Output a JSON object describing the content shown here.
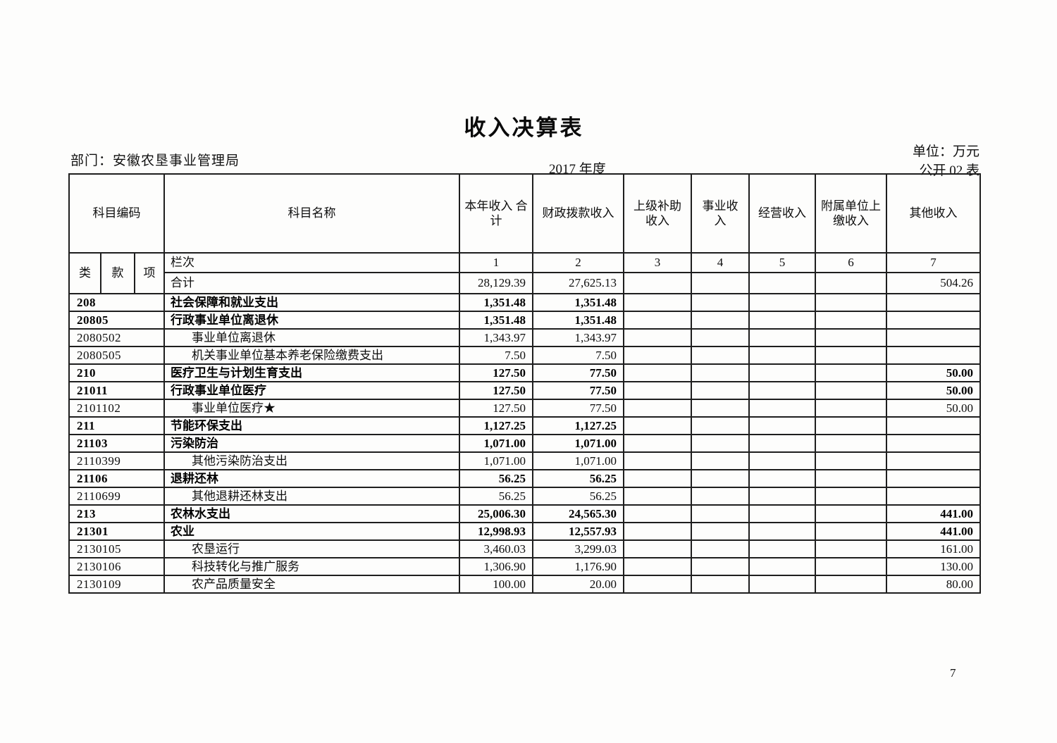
{
  "page": {
    "title": "收入决算表",
    "department": "部门：安徽农垦事业管理局",
    "year": "2017 年度",
    "unit": "单位：万元",
    "table_code": "公开 02 表",
    "page_number": "7"
  },
  "table": {
    "headers": {
      "subject_code": "科目编码",
      "subject_name": "科目名称",
      "income_columns": [
        "本年收入\n合计",
        "财政拨款收入",
        "上级补助\n收入",
        "事业收\n入",
        "经营收入",
        "附属单位上\n缴收入",
        "其他收入"
      ],
      "code_sub": [
        "类",
        "款",
        "项"
      ],
      "lanci": "栏次",
      "column_numbers": [
        "1",
        "2",
        "3",
        "4",
        "5",
        "6",
        "7"
      ]
    },
    "total_row": {
      "name": "合计",
      "values": [
        "28,129.39",
        "27,625.13",
        "",
        "",
        "",
        "",
        "504.26"
      ]
    },
    "rows": [
      {
        "code": "208",
        "name": "社会保障和就业支出",
        "bold": true,
        "indent": false,
        "values": [
          "1,351.48",
          "1,351.48",
          "",
          "",
          "",
          "",
          ""
        ]
      },
      {
        "code": "20805",
        "name": "行政事业单位离退休",
        "bold": true,
        "indent": false,
        "values": [
          "1,351.48",
          "1,351.48",
          "",
          "",
          "",
          "",
          ""
        ]
      },
      {
        "code": "2080502",
        "name": "事业单位离退休",
        "bold": false,
        "indent": true,
        "values": [
          "1,343.97",
          "1,343.97",
          "",
          "",
          "",
          "",
          ""
        ]
      },
      {
        "code": "2080505",
        "name": "机关事业单位基本养老保险缴费支出",
        "bold": false,
        "indent": true,
        "values": [
          "7.50",
          "7.50",
          "",
          "",
          "",
          "",
          ""
        ]
      },
      {
        "code": "210",
        "name": "医疗卫生与计划生育支出",
        "bold": true,
        "indent": false,
        "values": [
          "127.50",
          "77.50",
          "",
          "",
          "",
          "",
          "50.00"
        ]
      },
      {
        "code": "21011",
        "name": "行政事业单位医疗",
        "bold": true,
        "indent": false,
        "values": [
          "127.50",
          "77.50",
          "",
          "",
          "",
          "",
          "50.00"
        ]
      },
      {
        "code": "2101102",
        "name": "事业单位医疗★",
        "bold": false,
        "indent": true,
        "values": [
          "127.50",
          "77.50",
          "",
          "",
          "",
          "",
          "50.00"
        ]
      },
      {
        "code": "211",
        "name": "节能环保支出",
        "bold": true,
        "indent": false,
        "values": [
          "1,127.25",
          "1,127.25",
          "",
          "",
          "",
          "",
          ""
        ]
      },
      {
        "code": "21103",
        "name": "污染防治",
        "bold": true,
        "indent": false,
        "values": [
          "1,071.00",
          "1,071.00",
          "",
          "",
          "",
          "",
          ""
        ]
      },
      {
        "code": "2110399",
        "name": "其他污染防治支出",
        "bold": false,
        "indent": true,
        "values": [
          "1,071.00",
          "1,071.00",
          "",
          "",
          "",
          "",
          ""
        ]
      },
      {
        "code": "21106",
        "name": "退耕还林",
        "bold": true,
        "indent": false,
        "values": [
          "56.25",
          "56.25",
          "",
          "",
          "",
          "",
          ""
        ]
      },
      {
        "code": "2110699",
        "name": "其他退耕还林支出",
        "bold": false,
        "indent": true,
        "values": [
          "56.25",
          "56.25",
          "",
          "",
          "",
          "",
          ""
        ]
      },
      {
        "code": "213",
        "name": "农林水支出",
        "bold": true,
        "indent": false,
        "values": [
          "25,006.30",
          "24,565.30",
          "",
          "",
          "",
          "",
          "441.00"
        ]
      },
      {
        "code": "21301",
        "name": "农业",
        "bold": true,
        "indent": false,
        "values": [
          "12,998.93",
          "12,557.93",
          "",
          "",
          "",
          "",
          "441.00"
        ]
      },
      {
        "code": "2130105",
        "name": "农垦运行",
        "bold": false,
        "indent": true,
        "values": [
          "3,460.03",
          "3,299.03",
          "",
          "",
          "",
          "",
          "161.00"
        ]
      },
      {
        "code": "2130106",
        "name": "科技转化与推广服务",
        "bold": false,
        "indent": true,
        "values": [
          "1,306.90",
          "1,176.90",
          "",
          "",
          "",
          "",
          "130.00"
        ]
      },
      {
        "code": "2130109",
        "name": "农产品质量安全",
        "bold": false,
        "indent": true,
        "values": [
          "100.00",
          "20.00",
          "",
          "",
          "",
          "",
          "80.00"
        ]
      }
    ]
  }
}
